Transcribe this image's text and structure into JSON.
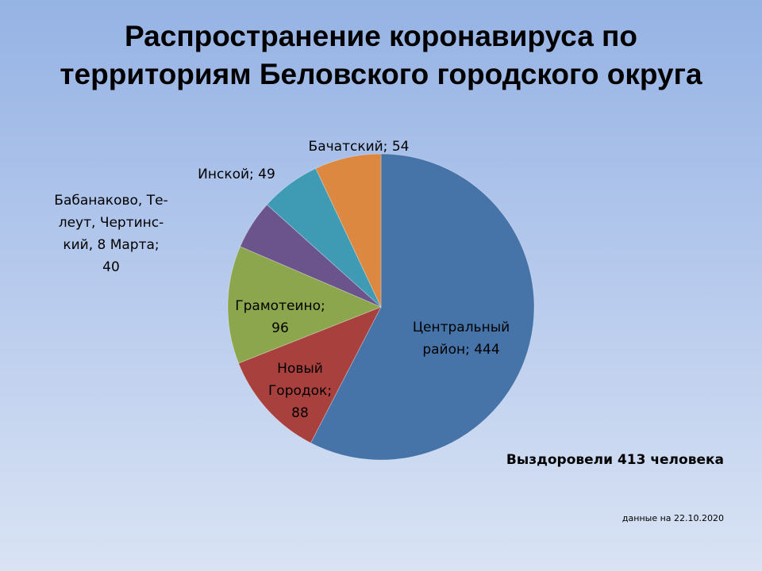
{
  "chart_data": {
    "type": "pie",
    "title_lines": [
      "Распространение коронавируса по",
      "территориям Беловского городского округа"
    ],
    "slices": [
      {
        "label_lines": [
          "Центральный",
          "район; 444"
        ],
        "value": 444,
        "color": "#4673a8"
      },
      {
        "label_lines": [
          "Новый",
          "Городок;",
          "88"
        ],
        "value": 88,
        "color": "#a8403d"
      },
      {
        "label_lines": [
          "Грамотеино;",
          "96"
        ],
        "value": 96,
        "color": "#8ca64d"
      },
      {
        "label_lines": [
          "Бабанаково, Те-",
          "леут, Чертинс-",
          "кий, 8 Марта;",
          "40"
        ],
        "value": 40,
        "color": "#6b548c"
      },
      {
        "label_lines": [
          "Инской; 49"
        ],
        "value": 49,
        "color": "#3f9bb4"
      },
      {
        "label_lines": [
          "Бачатский; 54"
        ],
        "value": 54,
        "color": "#dc8840"
      }
    ]
  },
  "footer": {
    "recovered": "Выздоровели 413 человека",
    "date": "данные на  22.10.2020"
  }
}
